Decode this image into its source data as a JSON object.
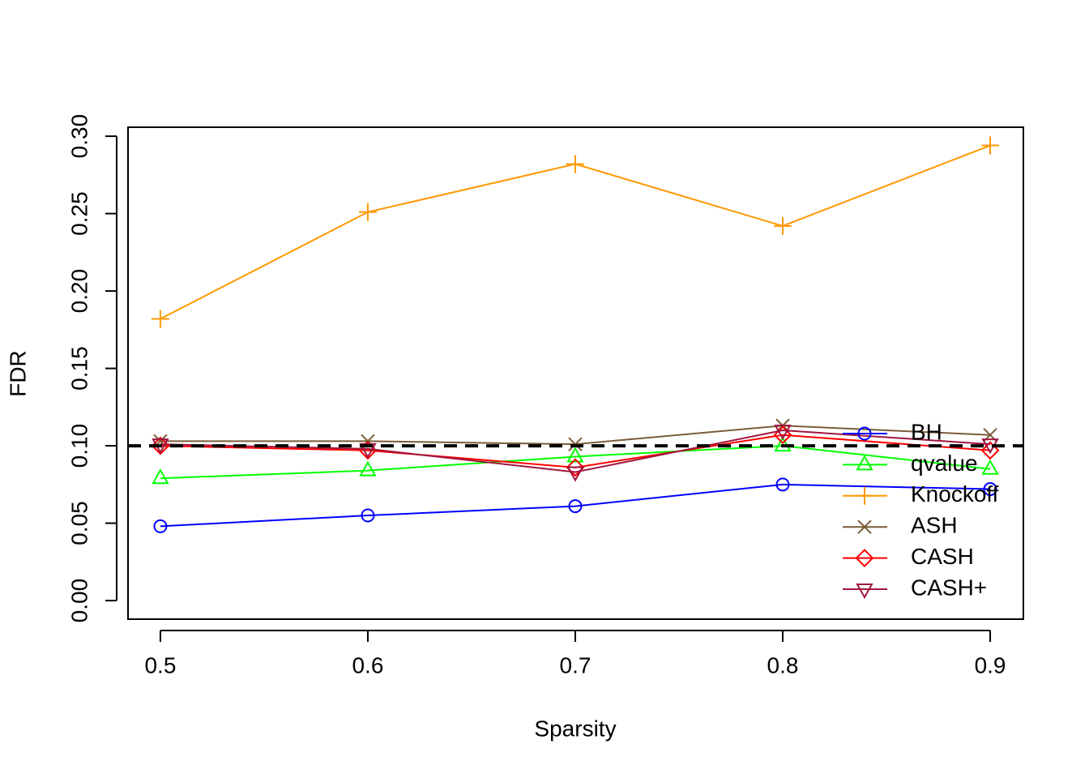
{
  "chart_data": {
    "type": "line",
    "x_label": "Sparsity",
    "y_label": "FDR",
    "x": [
      0.5,
      0.6,
      0.7,
      0.8,
      0.9
    ],
    "series": [
      {
        "name": "BH",
        "color": "#0000ff",
        "marker": "circle",
        "values": [
          0.048,
          0.055,
          0.061,
          0.075,
          0.072
        ]
      },
      {
        "name": "qvalue",
        "color": "#00ff00",
        "marker": "triangle",
        "values": [
          0.079,
          0.084,
          0.093,
          0.1,
          0.085
        ]
      },
      {
        "name": "Knockoff",
        "color": "#ff9900",
        "marker": "plus",
        "values": [
          0.182,
          0.251,
          0.282,
          0.242,
          0.294
        ]
      },
      {
        "name": "ASH",
        "color": "#7a5c3a",
        "marker": "cross",
        "values": [
          0.103,
          0.103,
          0.101,
          0.113,
          0.107
        ]
      },
      {
        "name": "CASH",
        "color": "#ff0000",
        "marker": "diamond",
        "values": [
          0.1,
          0.097,
          0.086,
          0.107,
          0.097
        ]
      },
      {
        "name": "CASH+",
        "color": "#a0153e",
        "marker": "down-triangle",
        "values": [
          0.101,
          0.098,
          0.083,
          0.11,
          0.101
        ]
      }
    ],
    "reference_line": 0.1,
    "xlim": [
      0.4844,
      0.916
    ],
    "ylim": [
      -0.012,
      0.3058
    ],
    "xticks": [
      0.5,
      0.6,
      0.7,
      0.8,
      0.9
    ],
    "yticks": [
      {
        "value": 0,
        "label": "0.00"
      },
      {
        "value": 0.05,
        "label": "0.05"
      },
      {
        "value": 0.1,
        "label": "0.10"
      },
      {
        "value": 0.15,
        "label": "0.15"
      },
      {
        "value": 0.2,
        "label": "0.20"
      },
      {
        "value": 0.25,
        "label": "0.25"
      },
      {
        "value": 0.3,
        "label": "0.30"
      }
    ],
    "legend": "right"
  }
}
